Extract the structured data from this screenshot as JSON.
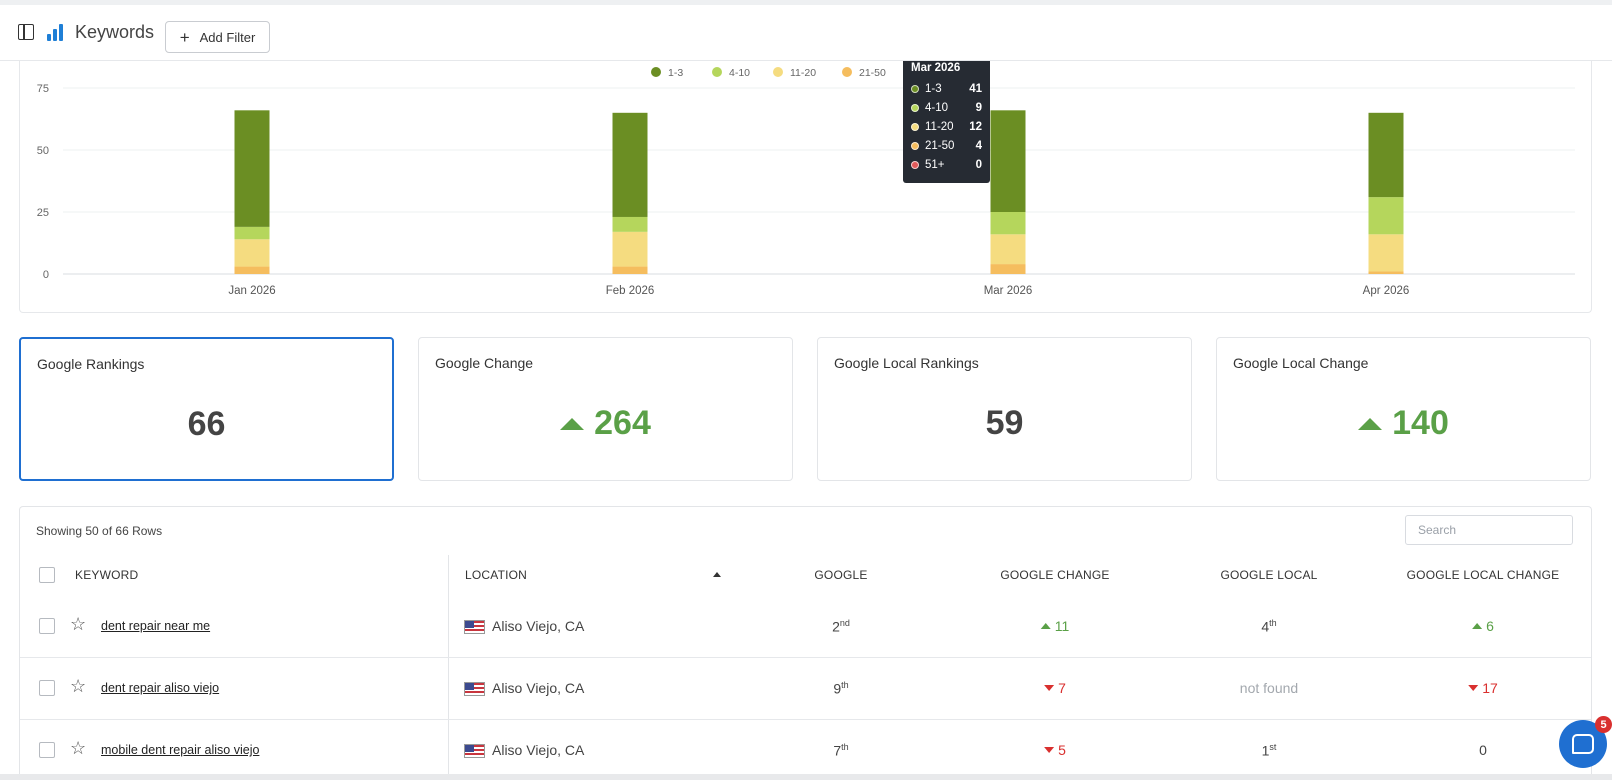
{
  "header": {
    "title": "Keywords",
    "add_filter_label": "Add Filter"
  },
  "chart_data": {
    "type": "bar",
    "stacked": true,
    "categories": [
      "Jan 2026",
      "Feb 2026",
      "Mar 2026",
      "Apr 2026"
    ],
    "series": [
      {
        "name": "1-3",
        "color": "#6b8e23",
        "values": [
          47,
          42,
          41,
          34
        ]
      },
      {
        "name": "4-10",
        "color": "#b5d65c",
        "values": [
          5,
          6,
          9,
          15
        ]
      },
      {
        "name": "11-20",
        "color": "#f5dc80",
        "values": [
          11,
          14,
          12,
          15
        ]
      },
      {
        "name": "21-50",
        "color": "#f5bd5e",
        "values": [
          3,
          3,
          4,
          1
        ]
      },
      {
        "name": "51+",
        "color": "#e05a5a",
        "values": [
          0,
          0,
          0,
          0
        ]
      }
    ],
    "legend_shown": [
      "1-3",
      "4-10",
      "11-20",
      "21-50"
    ],
    "legend_position": "top-center",
    "yticks": [
      0,
      25,
      50,
      75
    ],
    "ylim": [
      0,
      75
    ],
    "grid": true
  },
  "tooltip": {
    "title": "Mar 2026",
    "rows": [
      {
        "label": "1-3",
        "value": "41",
        "color": "#6b8e23"
      },
      {
        "label": "4-10",
        "value": "9",
        "color": "#b5d65c"
      },
      {
        "label": "11-20",
        "value": "12",
        "color": "#f5dc80"
      },
      {
        "label": "21-50",
        "value": "4",
        "color": "#f5bd5e"
      },
      {
        "label": "51+",
        "value": "0",
        "color": "#e05a5a"
      }
    ]
  },
  "stats": [
    {
      "label": "Google Rankings",
      "value": "66"
    },
    {
      "label": "Google Change",
      "value": "264"
    },
    {
      "label": "Google Local Rankings",
      "value": "59"
    },
    {
      "label": "Google Local Change",
      "value": "140"
    }
  ],
  "table": {
    "showing": "Showing 50 of 66 Rows",
    "search_placeholder": "Search",
    "columns": {
      "keyword": "KEYWORD",
      "location": "LOCATION",
      "google": "GOOGLE",
      "google_change": "GOOGLE CHANGE",
      "google_local": "GOOGLE LOCAL",
      "google_local_change": "GOOGLE LOCAL CHANGE"
    },
    "rows": [
      {
        "keyword": "dent repair near me",
        "location": "Aliso Viejo, CA",
        "google": "2",
        "google_sup": "nd",
        "google_change": "11",
        "google_local": "4",
        "google_local_sup": "th",
        "google_local_change": "6"
      },
      {
        "keyword": "dent repair aliso viejo",
        "location": "Aliso Viejo, CA",
        "google": "9",
        "google_sup": "th",
        "google_change": "7",
        "google_local": "not found",
        "google_local_change": "17"
      },
      {
        "keyword": "mobile dent repair aliso viejo",
        "location": "Aliso Viejo, CA",
        "google": "7",
        "google_sup": "th",
        "google_change": "5",
        "google_local": "1",
        "google_local_sup": "st",
        "google_local_change": "0"
      }
    ]
  },
  "chat": {
    "badge": "5"
  }
}
